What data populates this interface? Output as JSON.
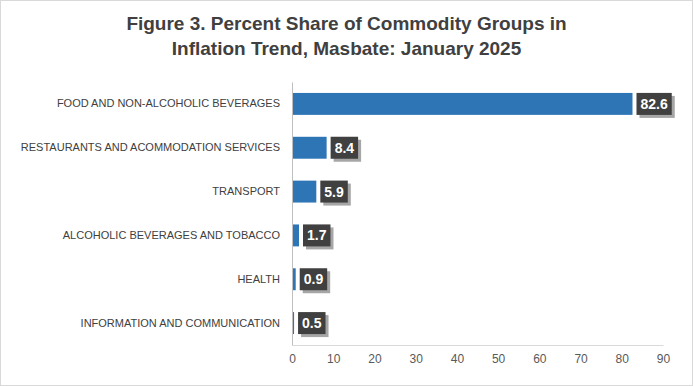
{
  "chart_data": {
    "type": "bar",
    "orientation": "horizontal",
    "title": [
      "Figure 3. Percent Share of Commodity Groups in",
      "Inflation Trend, Masbate: January 2025"
    ],
    "categories": [
      "FOOD AND NON-ALCOHOLIC BEVERAGES",
      "RESTAURANTS AND ACOMMODATION SERVICES",
      "TRANSPORT",
      "ALCOHOLIC BEVERAGES AND TOBACCO",
      "HEALTH",
      "INFORMATION AND COMMUNICATION"
    ],
    "values": [
      82.6,
      8.4,
      5.9,
      1.7,
      0.9,
      0.5
    ],
    "color": "#2e75b6",
    "xlim": [
      0,
      90
    ],
    "xticks": [
      0,
      10,
      20,
      30,
      40,
      50,
      60,
      70,
      80,
      90
    ],
    "grid": false,
    "data_labels": true
  }
}
